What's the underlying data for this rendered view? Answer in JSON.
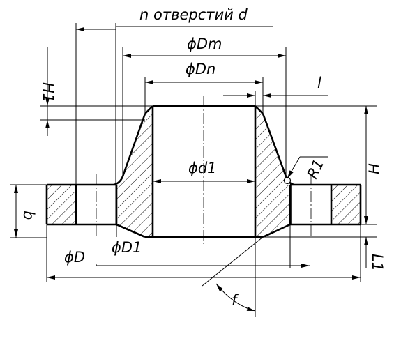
{
  "drawing": {
    "subject": "Weld neck flange cross-section",
    "labels": {
      "holes": "n отверстий d",
      "Dm": "ϕDm",
      "Dn": "ϕDn",
      "d1": "ϕd1",
      "D": "ϕD",
      "D1": "ϕD1",
      "H": "H",
      "H1": "H1",
      "l": "l",
      "R1": "R1",
      "b": "b",
      "L1": "L1",
      "f": "f"
    },
    "colors": {
      "line": "#000000",
      "background": "#ffffff"
    }
  }
}
